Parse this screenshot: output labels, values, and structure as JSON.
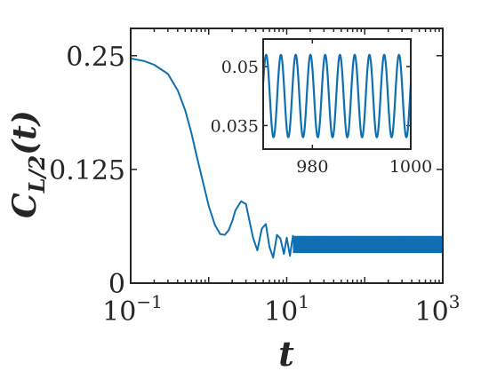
{
  "chart_data": [
    {
      "type": "line",
      "name": "main",
      "x_scale": "log",
      "xlim": [
        0.1,
        1000
      ],
      "ylim": [
        0,
        0.28
      ],
      "xlabel": "t",
      "ylabel": "C",
      "ylabel_sub": "L/2",
      "ylabel_arg": "(t)",
      "x_ticks": [
        {
          "value": 0.1,
          "base": "10",
          "exp": "−1"
        },
        {
          "value": 10,
          "base": "10",
          "exp": "1"
        },
        {
          "value": 1000,
          "base": "10",
          "exp": "3"
        }
      ],
      "y_ticks": [
        {
          "value": 0,
          "label": "0"
        },
        {
          "value": 0.125,
          "label": "0.125"
        },
        {
          "value": 0.25,
          "label": "0.25"
        }
      ],
      "series_color": "#0f6fb3",
      "x": [
        0.1,
        0.15,
        0.2,
        0.3,
        0.4,
        0.5,
        0.6,
        0.7,
        0.85,
        1.0,
        1.2,
        1.4,
        1.6,
        1.8,
        2.0,
        2.2,
        2.6,
        3.0,
        3.3,
        3.7,
        4.2,
        4.8,
        5.4,
        6.0,
        6.7,
        7.5,
        8.3,
        9.2,
        10,
        11,
        12,
        13,
        14,
        15,
        17,
        20,
        25,
        30,
        40,
        50,
        70,
        100,
        150,
        200,
        300,
        500,
        700,
        1000
      ],
      "y": [
        0.247,
        0.244,
        0.24,
        0.23,
        0.212,
        0.19,
        0.165,
        0.14,
        0.11,
        0.085,
        0.064,
        0.054,
        0.053,
        0.058,
        0.068,
        0.08,
        0.09,
        0.087,
        0.07,
        0.05,
        0.036,
        0.06,
        0.065,
        0.04,
        0.028,
        0.053,
        0.049,
        0.032,
        0.05,
        0.03,
        0.052,
        0.036,
        0.051,
        0.035,
        0.051,
        0.038,
        0.05,
        0.036,
        0.049,
        0.037,
        0.048,
        0.036,
        0.048,
        0.037,
        0.047,
        0.036,
        0.048,
        0.038
      ],
      "band": {
        "x_start": 12,
        "x_end": 1000,
        "y_low": 0.033,
        "y_high": 0.052
      }
    },
    {
      "type": "line",
      "name": "inset",
      "xlim": [
        970,
        1000
      ],
      "ylim": [
        0.029,
        0.057
      ],
      "x_ticks": [
        {
          "value": 980,
          "label": "980"
        },
        {
          "value": 1000,
          "label": "1000"
        }
      ],
      "y_ticks": [
        {
          "value": 0.035,
          "label": "0.035"
        },
        {
          "value": 0.05,
          "label": "0.05"
        }
      ],
      "series_color": "#0f6fb3",
      "period": 3.0,
      "mean": 0.0425,
      "amplitude": 0.0105
    }
  ]
}
